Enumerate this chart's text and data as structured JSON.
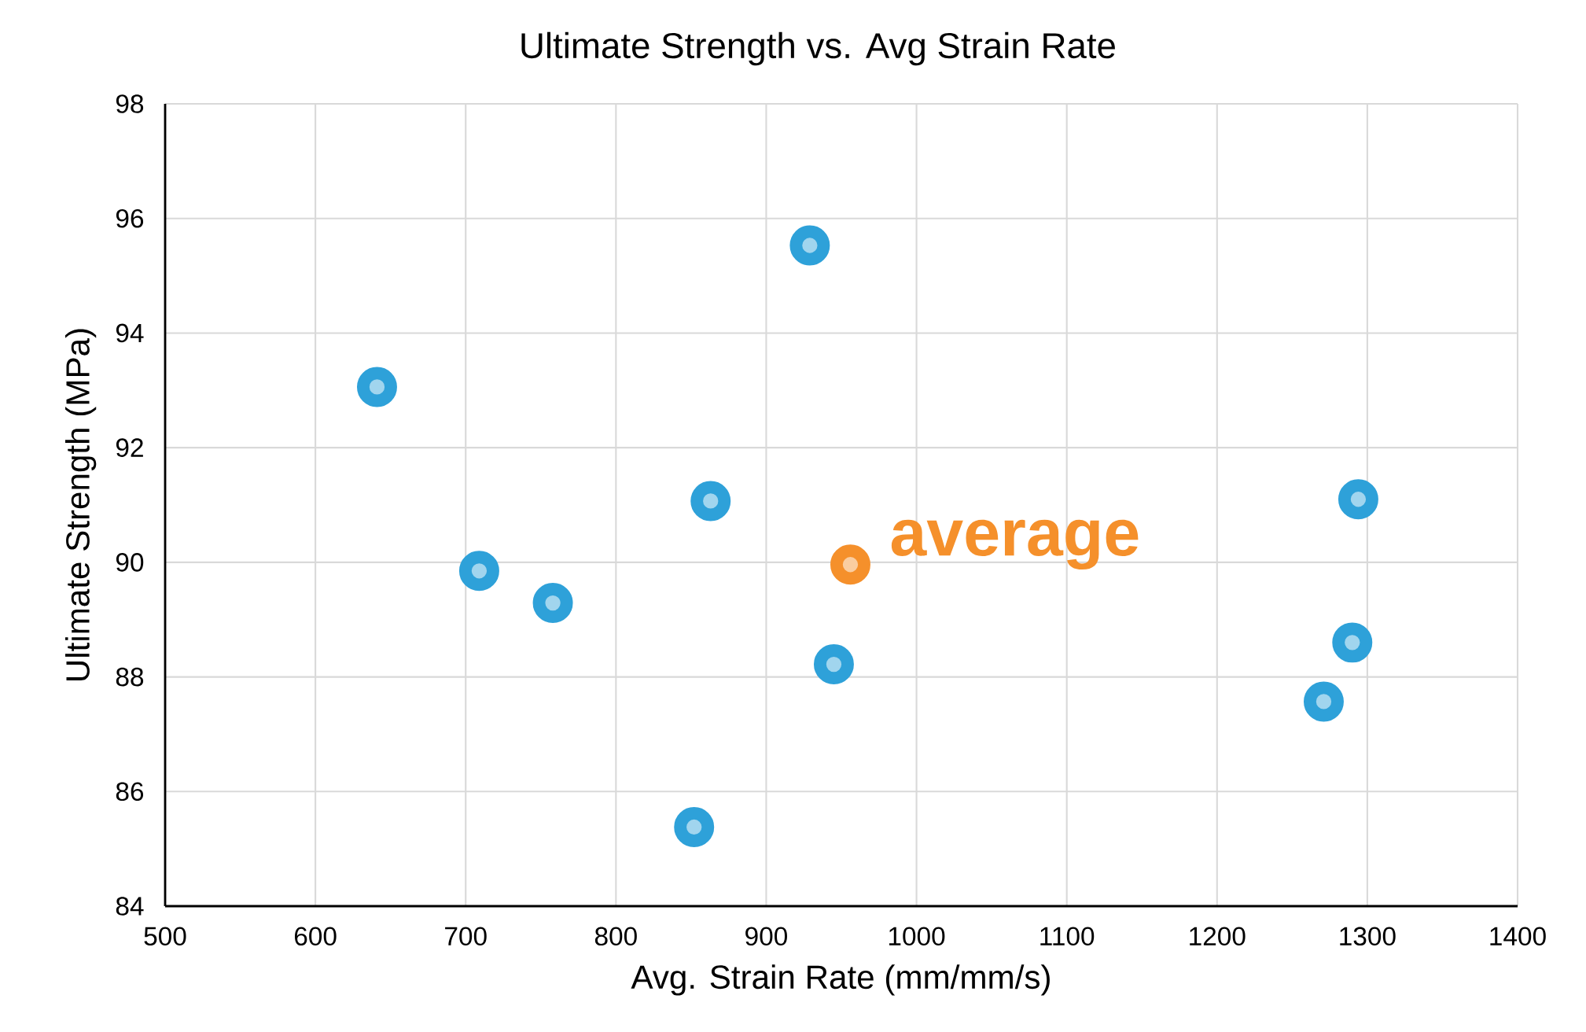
{
  "chart_data": {
    "type": "scatter",
    "title": "Ultimate Strength vs.  Avg Strain Rate",
    "xlabel": "Avg. Strain Rate (mm/mm/s)",
    "ylabel": "Ultimate Strength (MPa)",
    "xlim": [
      500,
      1400
    ],
    "ylim": [
      84,
      98
    ],
    "xticks": [
      500,
      600,
      700,
      800,
      900,
      1000,
      1100,
      1200,
      1300,
      1400
    ],
    "yticks": [
      84,
      86,
      88,
      90,
      92,
      94,
      96,
      98
    ],
    "grid": true,
    "legend": false,
    "marker": "circle",
    "series": [
      {
        "color": "#2ea1d9",
        "x": [
          641,
          709,
          758,
          852,
          863,
          929,
          945,
          1271,
          1290,
          1294
        ],
        "values": [
          93.06,
          89.85,
          89.29,
          85.38,
          91.07,
          95.53,
          88.22,
          87.57,
          88.6,
          91.1
        ]
      },
      {
        "color": "#f5902b",
        "x": [
          956
        ],
        "values": [
          89.96
        ]
      }
    ],
    "annotations": [
      {
        "text": "average",
        "x": 956,
        "y": 89.96
      }
    ]
  }
}
